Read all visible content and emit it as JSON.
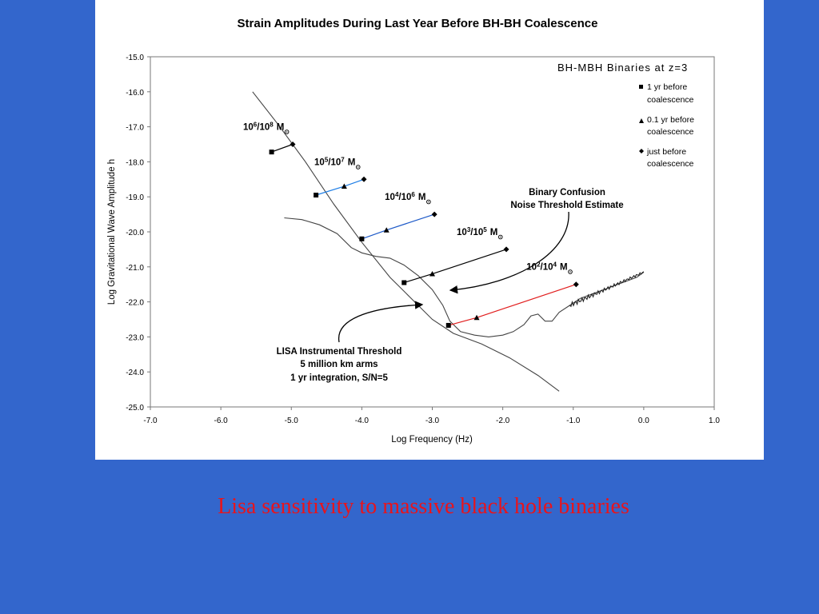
{
  "colors": {
    "background": "#3366cc",
    "panel": "#ffffff",
    "caption": "#e8141c",
    "curve": "#444444"
  },
  "caption": "Lisa sensitivity to massive black hole binaries",
  "chart_data": {
    "type": "line",
    "title": "Strain Amplitudes During Last Year Before BH-BH Coalescence",
    "xlabel": "Log Frequency (Hz)",
    "ylabel": "Log Gravitational Wave Amplitude h",
    "xlim": [
      -7.0,
      1.0
    ],
    "ylim": [
      -25.0,
      -15.0
    ],
    "xticks": [
      "-7.0",
      "-6.0",
      "-5.0",
      "-4.0",
      "-3.0",
      "-2.0",
      "-1.0",
      "0.0",
      "1.0"
    ],
    "yticks": [
      "-15.0",
      "-16.0",
      "-17.0",
      "-18.0",
      "-19.0",
      "-20.0",
      "-21.0",
      "-22.0",
      "-23.0",
      "-24.0",
      "-25.0"
    ],
    "grid": false,
    "legend": {
      "title": "BH-MBH Binaries at z=3",
      "position": "top-right",
      "entries": [
        {
          "marker": "square",
          "text": [
            "1 yr before",
            "coalescence"
          ]
        },
        {
          "marker": "triangle",
          "text": [
            "0.1 yr before",
            "coalescence"
          ]
        },
        {
          "marker": "diamond",
          "text": [
            "just before",
            "coalescence"
          ]
        }
      ]
    },
    "curves": [
      {
        "name": "LISA instrumental threshold",
        "points": [
          [
            -5.55,
            -16.0
          ],
          [
            -5.2,
            -16.9
          ],
          [
            -4.8,
            -18.0
          ],
          [
            -4.4,
            -19.2
          ],
          [
            -4.0,
            -20.3
          ],
          [
            -3.6,
            -21.3
          ],
          [
            -3.25,
            -22.0
          ],
          [
            -3.0,
            -22.5
          ],
          [
            -2.7,
            -22.9
          ],
          [
            -2.3,
            -23.2
          ],
          [
            -1.9,
            -23.6
          ],
          [
            -1.5,
            -24.1
          ],
          [
            -1.2,
            -24.55
          ]
        ]
      },
      {
        "name": "Binary confusion noise threshold",
        "points": [
          [
            -5.1,
            -19.6
          ],
          [
            -4.85,
            -19.65
          ],
          [
            -4.6,
            -19.8
          ],
          [
            -4.35,
            -20.05
          ],
          [
            -4.15,
            -20.45
          ],
          [
            -4.0,
            -20.6
          ],
          [
            -3.8,
            -20.7
          ],
          [
            -3.6,
            -20.75
          ],
          [
            -3.4,
            -20.95
          ],
          [
            -3.2,
            -21.25
          ],
          [
            -3.0,
            -21.65
          ],
          [
            -2.85,
            -22.1
          ],
          [
            -2.75,
            -22.55
          ],
          [
            -2.6,
            -22.85
          ],
          [
            -2.4,
            -22.95
          ],
          [
            -2.2,
            -23.0
          ],
          [
            -2.0,
            -22.95
          ],
          [
            -1.85,
            -22.85
          ],
          [
            -1.7,
            -22.65
          ],
          [
            -1.6,
            -22.4
          ],
          [
            -1.5,
            -22.35
          ],
          [
            -1.4,
            -22.55
          ],
          [
            -1.3,
            -22.55
          ],
          [
            -1.2,
            -22.3
          ],
          [
            -1.05,
            -22.1
          ],
          [
            -0.9,
            -21.9
          ],
          [
            -0.7,
            -21.75
          ],
          [
            -0.5,
            -21.6
          ],
          [
            -0.3,
            -21.45
          ],
          [
            -0.1,
            -21.3
          ],
          [
            0.0,
            -21.15
          ]
        ]
      }
    ],
    "series": [
      {
        "name": "10^6/10^8 M⊙",
        "color": "#000000",
        "points": [
          [
            -5.28,
            -17.72
          ],
          [
            -4.98,
            -17.5
          ]
        ]
      },
      {
        "name": "10^5/10^7 M⊙",
        "color": "#1e7ee6",
        "points": [
          [
            -4.65,
            -18.95
          ],
          [
            -4.25,
            -18.7
          ],
          [
            -3.97,
            -18.5
          ]
        ]
      },
      {
        "name": "10^4/10^6 M⊙",
        "color": "#1e5ac8",
        "points": [
          [
            -4.0,
            -20.2
          ],
          [
            -3.65,
            -19.95
          ],
          [
            -2.97,
            -19.5
          ]
        ]
      },
      {
        "name": "10^3/10^5 M⊙",
        "color": "#000000",
        "points": [
          [
            -3.4,
            -21.45
          ],
          [
            -3.0,
            -21.2
          ],
          [
            -1.95,
            -20.5
          ]
        ]
      },
      {
        "name": "10^2/10^4 M⊙",
        "color": "#e11e1e",
        "points": [
          [
            -2.77,
            -22.67
          ],
          [
            -2.37,
            -22.45
          ],
          [
            -0.96,
            -21.5
          ]
        ]
      }
    ],
    "mass_labels": [
      {
        "base1": "10",
        "exp1": "6",
        "base2": "/10",
        "exp2": "8",
        "unit": "M"
      },
      {
        "base1": "10",
        "exp1": "5",
        "base2": "/10",
        "exp2": "7",
        "unit": "M"
      },
      {
        "base1": "10",
        "exp1": "4",
        "base2": "/10",
        "exp2": "6",
        "unit": "M"
      },
      {
        "base1": "10",
        "exp1": "3",
        "base2": "/10",
        "exp2": "5",
        "unit": "M"
      },
      {
        "base1": "10",
        "exp1": "2",
        "base2": "/10",
        "exp2": "4",
        "unit": "M"
      }
    ],
    "annotations": {
      "lisa": [
        "LISA Instrumental Threshold",
        "5 million km arms",
        "1 yr integration, S/N=5"
      ],
      "confusion": [
        "Binary Confusion",
        "Noise Threshold Estimate"
      ]
    }
  }
}
